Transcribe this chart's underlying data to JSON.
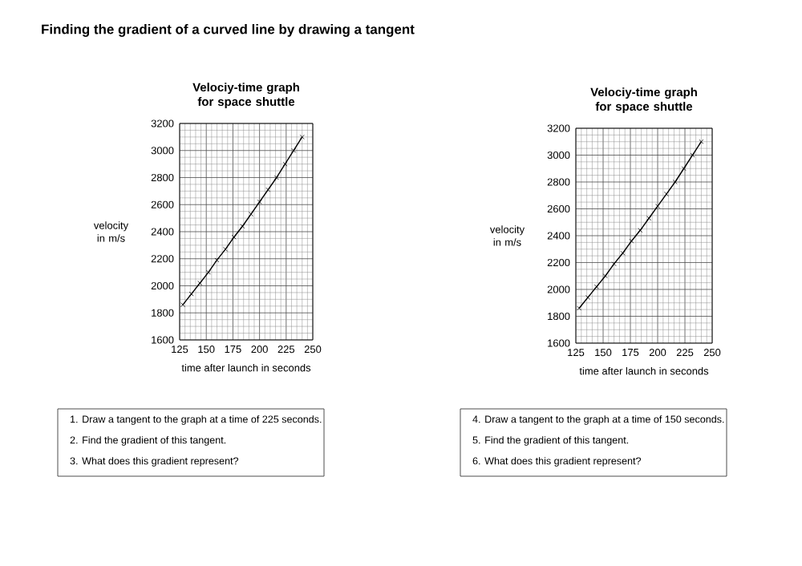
{
  "chart_data": [
    {
      "type": "line",
      "title": "Velociy-time graph for space shuttle",
      "xlabel": "time after launch in seconds",
      "ylabel": "velocity in m/s",
      "x": [
        128,
        136,
        144,
        152,
        160,
        168,
        176,
        184,
        192,
        200,
        208,
        216,
        224,
        232,
        240
      ],
      "values": [
        1860,
        1940,
        2020,
        2100,
        2190,
        2270,
        2360,
        2440,
        2530,
        2620,
        2710,
        2800,
        2900,
        3000,
        3100
      ],
      "color": "#000000",
      "marker": "cross",
      "line_style": "solid",
      "grid": true,
      "xlim": [
        125,
        250
      ],
      "xticks": [
        125,
        150,
        175,
        200,
        225,
        250
      ],
      "ylim": [
        1600,
        3200
      ],
      "yticks": [
        1600,
        1800,
        2000,
        2200,
        2400,
        2600,
        2800,
        3000,
        3200
      ],
      "annotations": [
        "Finding the gradient of a curved line by drawing a tangent",
        "1.   Draw a tangent to the graph at a time of 225 seconds.",
        "2.   Find the gradient of this tangent.",
        "3.   What does this gradient represent?"
      ]
    },
    {
      "type": "line",
      "title": "Velociy-time graph for space shuttle",
      "xlabel": "time after launch in seconds",
      "ylabel": "velocity in m/s",
      "x": [
        128,
        136,
        144,
        152,
        160,
        168,
        176,
        184,
        192,
        200,
        208,
        216,
        224,
        232,
        240
      ],
      "values": [
        1860,
        1940,
        2020,
        2100,
        2190,
        2270,
        2360,
        2440,
        2530,
        2620,
        2710,
        2800,
        2900,
        3000,
        3100
      ],
      "color": "#000000",
      "marker": "cross",
      "line_style": "solid",
      "grid": true,
      "xlim": [
        125,
        250
      ],
      "xticks": [
        125,
        150,
        175,
        200,
        225,
        250
      ],
      "ylim": [
        1600,
        3200
      ],
      "yticks": [
        1600,
        1800,
        2000,
        2200,
        2400,
        2600,
        2800,
        3000,
        3200
      ],
      "annotations": [
        "4.   Draw a tangent to the graph at a time of 150 seconds.",
        "5.   Find the gradient of this tangent.",
        "6.   What does this gradient represent?"
      ]
    }
  ]
}
